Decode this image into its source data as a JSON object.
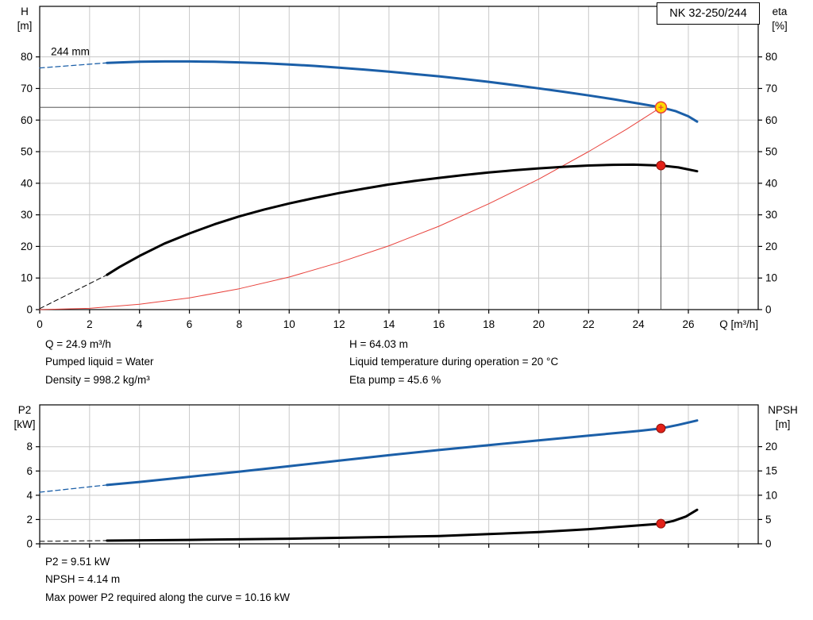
{
  "title_box": {
    "label": "NK 32-250/244"
  },
  "info_top": {
    "left": [
      "Q = 24.9 m³/h",
      "Pumped liquid = Water",
      "Density = 998.2 kg/m³"
    ],
    "right": [
      "H = 64.03 m",
      "Liquid temperature during operation = 20 °C",
      "Eta pump = 45.6 %"
    ]
  },
  "info_bottom": {
    "lines": [
      "P2 = 9.51 kW",
      "NPSH = 4.14 m",
      "Max power P2 required along the curve = 10.16 kW"
    ]
  },
  "colors": {
    "curve_blue": "#1b5fa8",
    "curve_black": "#000000",
    "system_red": "#e8423c",
    "marker_red": "#e32119",
    "marker_red_edge": "#8f1109",
    "duty_yellow": "#ffd800",
    "crosshair": "#3c3c3c",
    "grid": "#c9c9c9",
    "axis": "#000000"
  },
  "chart_data": [
    {
      "id": "head-efficiency",
      "type": "line",
      "impeller_annotation": {
        "text": "244 mm",
        "x": 0.45,
        "y": 80.6
      },
      "x_axis": {
        "label": "Q [m³/h]",
        "min": 0,
        "max": 28.8,
        "ticks": [
          0,
          2,
          4,
          6,
          8,
          10,
          12,
          14,
          16,
          18,
          20,
          22,
          24,
          26
        ],
        "grid_extra": [
          28
        ],
        "show_labels": true
      },
      "y_left": {
        "label": [
          "H",
          "[m]"
        ],
        "min": 0,
        "max": 96,
        "ticks": [
          0,
          10,
          20,
          30,
          40,
          50,
          60,
          70,
          80
        ]
      },
      "y_right": {
        "label": [
          "eta",
          "[%]"
        ],
        "min": 0,
        "max": 96,
        "ticks": [
          0,
          10,
          20,
          30,
          40,
          50,
          60,
          70,
          80
        ]
      },
      "series": [
        {
          "name": "duty-crosshair-horizontal",
          "axis": "left",
          "color": "#3c3c3c",
          "width": 0.9,
          "points": [
            [
              0,
              64.03
            ],
            [
              24.9,
              64.03
            ]
          ]
        },
        {
          "name": "duty-crosshair-vertical",
          "axis": "left",
          "color": "#3c3c3c",
          "width": 0.9,
          "points": [
            [
              24.9,
              0
            ],
            [
              24.9,
              64.03
            ]
          ]
        },
        {
          "name": "system-curve",
          "axis": "left",
          "color": "#e8423c",
          "width": 1,
          "points": [
            [
              0,
              0
            ],
            [
              2,
              0.4
            ],
            [
              4,
              1.7
            ],
            [
              6,
              3.7
            ],
            [
              8,
              6.6
            ],
            [
              10,
              10.3
            ],
            [
              12,
              14.9
            ],
            [
              14,
              20.2
            ],
            [
              16,
              26.4
            ],
            [
              18,
              33.5
            ],
            [
              20,
              41.3
            ],
            [
              22,
              50.0
            ],
            [
              23.5,
              57.0
            ],
            [
              24.9,
              64.03
            ]
          ]
        },
        {
          "name": "head-curve-extrapolated",
          "axis": "left",
          "color": "#1b5fa8",
          "width": 1.3,
          "dash": "6 4",
          "points": [
            [
              0,
              76.5
            ],
            [
              2.7,
              78.1
            ]
          ]
        },
        {
          "name": "head-curve",
          "axis": "left",
          "color": "#1b5fa8",
          "width": 3,
          "points": [
            [
              2.7,
              78.1
            ],
            [
              4,
              78.45
            ],
            [
              5,
              78.55
            ],
            [
              6,
              78.55
            ],
            [
              7,
              78.45
            ],
            [
              8,
              78.25
            ],
            [
              9,
              78.0
            ],
            [
              10,
              77.6
            ],
            [
              11,
              77.15
            ],
            [
              12,
              76.6
            ],
            [
              13,
              76.0
            ],
            [
              14,
              75.35
            ],
            [
              15,
              74.6
            ],
            [
              16,
              73.85
            ],
            [
              17,
              73.0
            ],
            [
              18,
              72.1
            ],
            [
              19,
              71.1
            ],
            [
              20,
              70.05
            ],
            [
              21,
              68.95
            ],
            [
              22,
              67.8
            ],
            [
              23,
              66.6
            ],
            [
              24,
              65.25
            ],
            [
              24.9,
              64.03
            ],
            [
              25.5,
              62.8
            ],
            [
              26,
              61.2
            ],
            [
              26.35,
              59.5
            ]
          ]
        },
        {
          "name": "eta-curve-extrapolated",
          "axis": "right",
          "color": "#000000",
          "width": 1,
          "dash": "6 4",
          "points": [
            [
              0,
              0.3
            ],
            [
              2.7,
              11
            ]
          ]
        },
        {
          "name": "eta-curve",
          "axis": "right",
          "color": "#000000",
          "width": 3,
          "points": [
            [
              2.7,
              11
            ],
            [
              3.2,
              13.5
            ],
            [
              4,
              17
            ],
            [
              5,
              20.9
            ],
            [
              6,
              24.1
            ],
            [
              7,
              27.0
            ],
            [
              8,
              29.5
            ],
            [
              9,
              31.7
            ],
            [
              10,
              33.6
            ],
            [
              11,
              35.3
            ],
            [
              12,
              36.9
            ],
            [
              13,
              38.3
            ],
            [
              14,
              39.6
            ],
            [
              15,
              40.7
            ],
            [
              16,
              41.7
            ],
            [
              17,
              42.6
            ],
            [
              18,
              43.4
            ],
            [
              19,
              44.1
            ],
            [
              20,
              44.7
            ],
            [
              21,
              45.2
            ],
            [
              22,
              45.6
            ],
            [
              23,
              45.85
            ],
            [
              23.8,
              45.9
            ],
            [
              24.9,
              45.6
            ],
            [
              25.6,
              45.0
            ],
            [
              26.35,
              43.8
            ]
          ]
        }
      ],
      "markers": [
        {
          "name": "duty-point",
          "axis": "left",
          "x": 24.9,
          "y": 64.03,
          "r": 7,
          "fill": "#ffd800",
          "stroke": "#e8423c",
          "stroke_width": 1.5,
          "cross": true
        },
        {
          "name": "eta-operating-point",
          "axis": "right",
          "x": 24.9,
          "y": 45.6,
          "r": 5.5,
          "fill": "#e32119",
          "stroke": "#8f1109",
          "stroke_width": 1
        }
      ]
    },
    {
      "id": "power-npsh",
      "type": "line",
      "x_axis": {
        "label": "",
        "min": 0,
        "max": 28.8,
        "ticks": [
          0,
          2,
          4,
          6,
          8,
          10,
          12,
          14,
          16,
          18,
          20,
          22,
          24,
          26
        ],
        "grid_extra": [
          28
        ],
        "show_labels": false
      },
      "y_left": {
        "label": [
          "P2",
          "[kW]"
        ],
        "min": 0,
        "max": 11.45,
        "ticks": [
          0,
          2,
          4,
          6,
          8
        ]
      },
      "y_right": {
        "label": [
          "NPSH",
          "[m]"
        ],
        "min": 0,
        "max": 28.6,
        "ticks": [
          0,
          5,
          10,
          15,
          20
        ]
      },
      "series": [
        {
          "name": "p2-curve-extrapolated",
          "axis": "left",
          "color": "#1b5fa8",
          "width": 1.3,
          "dash": "6 4",
          "points": [
            [
              0,
              4.25
            ],
            [
              2.7,
              4.85
            ]
          ]
        },
        {
          "name": "p2-curve",
          "axis": "left",
          "color": "#1b5fa8",
          "width": 3,
          "points": [
            [
              2.7,
              4.85
            ],
            [
              4,
              5.1
            ],
            [
              6,
              5.52
            ],
            [
              8,
              5.95
            ],
            [
              10,
              6.4
            ],
            [
              12,
              6.85
            ],
            [
              14,
              7.3
            ],
            [
              16,
              7.73
            ],
            [
              18,
              8.13
            ],
            [
              20,
              8.52
            ],
            [
              22,
              8.92
            ],
            [
              24,
              9.3
            ],
            [
              24.9,
              9.51
            ],
            [
              25.6,
              9.8
            ],
            [
              26.35,
              10.16
            ]
          ]
        },
        {
          "name": "npsh-curve-extrapolated",
          "axis": "right",
          "color": "#000000",
          "width": 1,
          "dash": "6 4",
          "points": [
            [
              0,
              0.5
            ],
            [
              2.7,
              0.65
            ]
          ]
        },
        {
          "name": "npsh-curve",
          "axis": "right",
          "color": "#000000",
          "width": 3,
          "points": [
            [
              2.7,
              0.65
            ],
            [
              6,
              0.8
            ],
            [
              10,
              1.05
            ],
            [
              14,
              1.4
            ],
            [
              16,
              1.6
            ],
            [
              18,
              2.0
            ],
            [
              20,
              2.4
            ],
            [
              22,
              3.0
            ],
            [
              23.5,
              3.6
            ],
            [
              24.9,
              4.14
            ],
            [
              25.4,
              4.7
            ],
            [
              25.9,
              5.6
            ],
            [
              26.35,
              7.0
            ]
          ]
        }
      ],
      "markers": [
        {
          "name": "p2-operating-point",
          "axis": "left",
          "x": 24.9,
          "y": 9.51,
          "r": 5.5,
          "fill": "#e32119",
          "stroke": "#8f1109",
          "stroke_width": 1
        },
        {
          "name": "npsh-operating-point",
          "axis": "right",
          "x": 24.9,
          "y": 4.14,
          "r": 5.5,
          "fill": "#e32119",
          "stroke": "#8f1109",
          "stroke_width": 1
        }
      ]
    }
  ]
}
